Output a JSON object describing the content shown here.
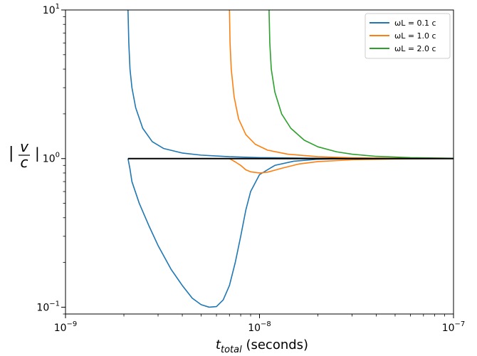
{
  "chart_data": {
    "type": "line",
    "title": "",
    "xlabel": {
      "symbol": "t",
      "subscript": "total",
      "unit": "(seconds)"
    },
    "ylabel": {
      "numerator": "v",
      "denominator": "c"
    },
    "x_scale": "log",
    "y_scale": "log",
    "xlim": [
      1e-09,
      1e-07
    ],
    "ylim": [
      0.09,
      10
    ],
    "x_ticks": [
      {
        "value": 1e-09,
        "base": "10",
        "exp": "−9"
      },
      {
        "value": 1e-08,
        "base": "10",
        "exp": "−8"
      },
      {
        "value": 1e-07,
        "base": "10",
        "exp": "−7"
      }
    ],
    "y_ticks": [
      {
        "value": 0.1,
        "base": "10",
        "exp": "−1"
      },
      {
        "value": 1,
        "base": "10",
        "exp": "0"
      },
      {
        "value": 10,
        "base": "10",
        "exp": "1"
      }
    ],
    "grid": false,
    "legend_position": "top-right",
    "series": [
      {
        "name": "ωL = 0.1 c",
        "color": "#1f77b4",
        "upper_branch": [
          [
            2.1e-09,
            10
          ],
          [
            2.12e-09,
            6.0
          ],
          [
            2.15e-09,
            4.0
          ],
          [
            2.2e-09,
            3.0
          ],
          [
            2.3e-09,
            2.2
          ],
          [
            2.5e-09,
            1.6
          ],
          [
            2.8e-09,
            1.3
          ],
          [
            3.2e-09,
            1.17
          ],
          [
            4e-09,
            1.09
          ],
          [
            5e-09,
            1.055
          ],
          [
            7e-09,
            1.03
          ],
          [
            1e-08,
            1.015
          ],
          [
            2e-08,
            1.005
          ],
          [
            5e-08,
            1.001
          ],
          [
            1e-07,
            1.0
          ]
        ],
        "lower_branch": [
          [
            2.1e-09,
            1.0
          ],
          [
            2.15e-09,
            0.85
          ],
          [
            2.2e-09,
            0.7
          ],
          [
            2.4e-09,
            0.5
          ],
          [
            2.7e-09,
            0.35
          ],
          [
            3e-09,
            0.26
          ],
          [
            3.5e-09,
            0.18
          ],
          [
            4e-09,
            0.14
          ],
          [
            4.5e-09,
            0.115
          ],
          [
            5e-09,
            0.104
          ],
          [
            5.5e-09,
            0.1
          ],
          [
            6e-09,
            0.101
          ],
          [
            6.5e-09,
            0.112
          ],
          [
            7e-09,
            0.14
          ],
          [
            7.5e-09,
            0.2
          ],
          [
            8e-09,
            0.3
          ],
          [
            8.5e-09,
            0.45
          ],
          [
            9e-09,
            0.6
          ],
          [
            1e-08,
            0.78
          ],
          [
            1.2e-08,
            0.9
          ],
          [
            1.5e-08,
            0.96
          ],
          [
            2e-08,
            0.99
          ],
          [
            3e-08,
            1.0
          ],
          [
            1e-07,
            1.0
          ]
        ]
      },
      {
        "name": "ωL = 1.0 c",
        "color": "#ff7f0e",
        "upper_branch": [
          [
            7e-09,
            10
          ],
          [
            7.05e-09,
            6.0
          ],
          [
            7.15e-09,
            4.0
          ],
          [
            7.4e-09,
            2.6
          ],
          [
            7.8e-09,
            1.85
          ],
          [
            8.5e-09,
            1.45
          ],
          [
            9.5e-09,
            1.25
          ],
          [
            1.1e-08,
            1.14
          ],
          [
            1.4e-08,
            1.07
          ],
          [
            2e-08,
            1.03
          ],
          [
            3e-08,
            1.012
          ],
          [
            5e-08,
            1.004
          ],
          [
            1e-07,
            1.0
          ]
        ],
        "lower_branch": [
          [
            7e-09,
            1.0
          ],
          [
            7.5e-09,
            0.95
          ],
          [
            8e-09,
            0.9
          ],
          [
            8.5e-09,
            0.84
          ],
          [
            9e-09,
            0.815
          ],
          [
            1e-08,
            0.8
          ],
          [
            1.1e-08,
            0.81
          ],
          [
            1.3e-08,
            0.86
          ],
          [
            1.6e-08,
            0.92
          ],
          [
            2e-08,
            0.955
          ],
          [
            3e-08,
            0.982
          ],
          [
            5e-08,
            0.994
          ],
          [
            1e-07,
            1.0
          ]
        ]
      },
      {
        "name": "ωL = 2.0 c",
        "color": "#2ca02c",
        "upper_branch": [
          [
            1.12e-08,
            10
          ],
          [
            1.13e-08,
            6.0
          ],
          [
            1.15e-08,
            4.0
          ],
          [
            1.2e-08,
            2.8
          ],
          [
            1.3e-08,
            2.0
          ],
          [
            1.45e-08,
            1.6
          ],
          [
            1.7e-08,
            1.33
          ],
          [
            2e-08,
            1.2
          ],
          [
            2.5e-08,
            1.11
          ],
          [
            3e-08,
            1.07
          ],
          [
            4e-08,
            1.035
          ],
          [
            6e-08,
            1.015
          ],
          [
            1e-07,
            1.005
          ]
        ],
        "lower_branch": []
      }
    ],
    "reference_line": {
      "y": 1,
      "x_from": 2.1e-09,
      "x_to": 1e-07,
      "color": "#000000"
    }
  }
}
